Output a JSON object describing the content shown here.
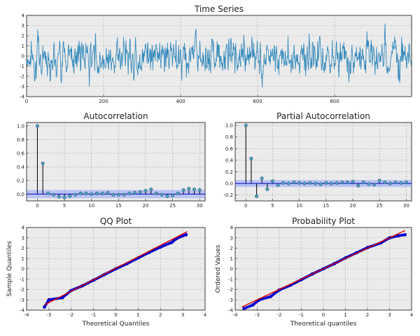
{
  "chart_data": [
    {
      "id": "timeseries",
      "type": "line",
      "title": "Time Series",
      "xlabel": "",
      "ylabel": "",
      "xlim": [
        0,
        1000
      ],
      "ylim": [
        -4,
        4
      ],
      "xticks": [
        0,
        200,
        400,
        600,
        800
      ],
      "yticks": [
        -4,
        -3,
        -2,
        -1,
        0,
        1,
        2,
        3,
        4
      ],
      "grid": true,
      "color": "#348abd",
      "n_points": 1000,
      "y_min": -3.8,
      "y_max": 3.2
    },
    {
      "id": "acf",
      "type": "stem",
      "title": "Autocorrelation",
      "xlim": [
        -2,
        31
      ],
      "ylim": [
        -0.1,
        1.05
      ],
      "xticks": [
        0,
        5,
        10,
        15,
        20,
        25,
        30
      ],
      "yticks": [
        0.0,
        0.2,
        0.4,
        0.6,
        0.8,
        1.0
      ],
      "grid": true,
      "band": 0.06,
      "lags": [
        0,
        1,
        2,
        3,
        4,
        5,
        6,
        7,
        8,
        9,
        10,
        11,
        12,
        13,
        14,
        15,
        16,
        17,
        18,
        19,
        20,
        21,
        22,
        23,
        24,
        25,
        26,
        27,
        28,
        29,
        30
      ],
      "values": [
        1.0,
        0.45,
        0.01,
        -0.01,
        -0.04,
        -0.05,
        -0.03,
        -0.01,
        0.01,
        0.01,
        0.0,
        0.01,
        0.01,
        0.02,
        -0.01,
        -0.01,
        -0.01,
        0.01,
        0.02,
        0.03,
        0.05,
        0.07,
        0.01,
        -0.01,
        -0.03,
        -0.02,
        0.01,
        0.06,
        0.08,
        0.07,
        0.06
      ]
    },
    {
      "id": "pacf",
      "type": "stem",
      "title": "Partial Autocorrelation",
      "xlim": [
        -2,
        31
      ],
      "ylim": [
        -0.3,
        1.05
      ],
      "xticks": [
        0,
        5,
        10,
        15,
        20,
        25,
        30
      ],
      "yticks": [
        -0.2,
        0.0,
        0.2,
        0.4,
        0.6,
        0.8,
        1.0
      ],
      "grid": true,
      "band": 0.06,
      "lags": [
        0,
        1,
        2,
        3,
        4,
        5,
        6,
        7,
        8,
        9,
        10,
        11,
        12,
        13,
        14,
        15,
        16,
        17,
        18,
        19,
        20,
        21,
        22,
        23,
        24,
        25,
        26,
        27,
        28,
        29,
        30
      ],
      "values": [
        1.0,
        0.43,
        -0.22,
        0.09,
        -0.1,
        0.04,
        -0.03,
        0.01,
        0.0,
        0.02,
        0.01,
        0.0,
        0.01,
        0.0,
        -0.01,
        0.01,
        0.0,
        0.01,
        0.02,
        0.02,
        0.03,
        -0.04,
        0.02,
        -0.01,
        -0.02,
        0.05,
        0.02,
        0.0,
        0.02,
        0.01,
        0.02
      ]
    },
    {
      "id": "qq",
      "type": "scatter",
      "title": "QQ Plot",
      "xlabel": "Theoretical Quantiles",
      "ylabel": "Sample Quantiles",
      "xlim": [
        -4,
        4
      ],
      "ylim": [
        -4,
        4
      ],
      "xticks": [
        -4,
        -3,
        -2,
        -1,
        0,
        1,
        2,
        3,
        4
      ],
      "yticks": [
        -4,
        -3,
        -2,
        -1,
        0,
        1,
        2,
        3,
        4
      ],
      "grid": true,
      "point_color": "#0000cc",
      "line_color": "#dd0000",
      "line": [
        [
          -3.2,
          -3.5
        ],
        [
          3.2,
          3.6
        ]
      ],
      "quantiles_x": [
        -3.2,
        -3.0,
        -2.4,
        -2.0,
        -1.5,
        -1.0,
        -0.5,
        0.0,
        0.5,
        1.0,
        1.5,
        2.0,
        2.5,
        2.7,
        3.0,
        3.15
      ],
      "quantiles_y": [
        -3.7,
        -3.0,
        -2.8,
        -2.1,
        -1.65,
        -1.1,
        -0.55,
        0.0,
        0.5,
        1.05,
        1.6,
        2.1,
        2.55,
        2.9,
        3.2,
        3.3
      ]
    },
    {
      "id": "prob",
      "type": "scatter",
      "title": "Probability Plot",
      "xlabel": "Theoretical quantiles",
      "ylabel": "Ordered Values",
      "xlim": [
        -4,
        4
      ],
      "ylim": [
        -4,
        4
      ],
      "xticks": [
        -4,
        -3,
        -2,
        -1,
        0,
        1,
        2,
        3,
        4
      ],
      "yticks": [
        -4,
        -3,
        -2,
        -1,
        0,
        1,
        2,
        3,
        4
      ],
      "grid": true,
      "point_color": "#0000cc",
      "line_color": "#dd0000",
      "line": [
        [
          -3.7,
          -3.7
        ],
        [
          3.7,
          3.7
        ]
      ],
      "quantiles_x": [
        -3.6,
        -3.2,
        -2.9,
        -2.4,
        -2.0,
        -1.5,
        -1.0,
        -0.5,
        0.0,
        0.5,
        1.0,
        1.5,
        2.0,
        2.6,
        3.0,
        3.4,
        3.7
      ],
      "quantiles_y": [
        -3.85,
        -3.5,
        -3.0,
        -2.7,
        -2.05,
        -1.6,
        -1.05,
        -0.5,
        0.0,
        0.5,
        1.05,
        1.55,
        2.05,
        2.5,
        3.0,
        3.2,
        3.3
      ]
    }
  ]
}
